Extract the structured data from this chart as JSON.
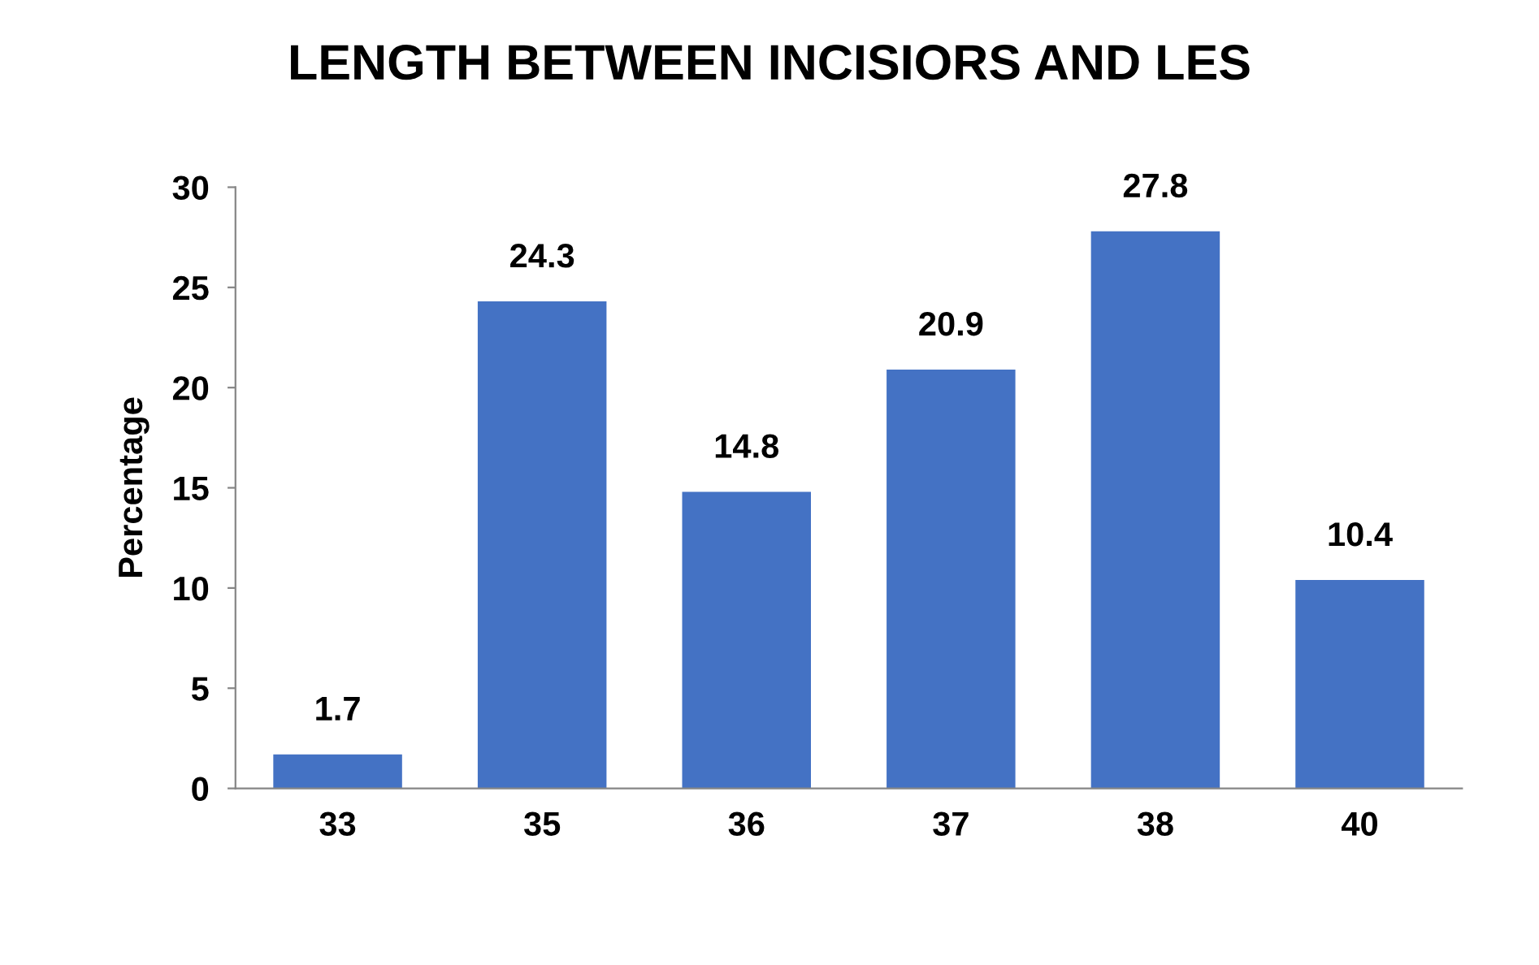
{
  "chart_data": {
    "type": "bar",
    "title": "LENGTH BETWEEN INCISIORS AND LES",
    "ylabel": "Percentage",
    "categories": [
      "33",
      "35",
      "36",
      "37",
      "38",
      "40"
    ],
    "values": [
      1.7,
      24.3,
      14.8,
      20.9,
      27.8,
      10.4
    ],
    "color": "#4472c4",
    "ylim": [
      0,
      30
    ],
    "yticks": [
      0,
      5,
      10,
      15,
      20,
      25,
      30
    ],
    "data_labels": true,
    "grid": false
  }
}
